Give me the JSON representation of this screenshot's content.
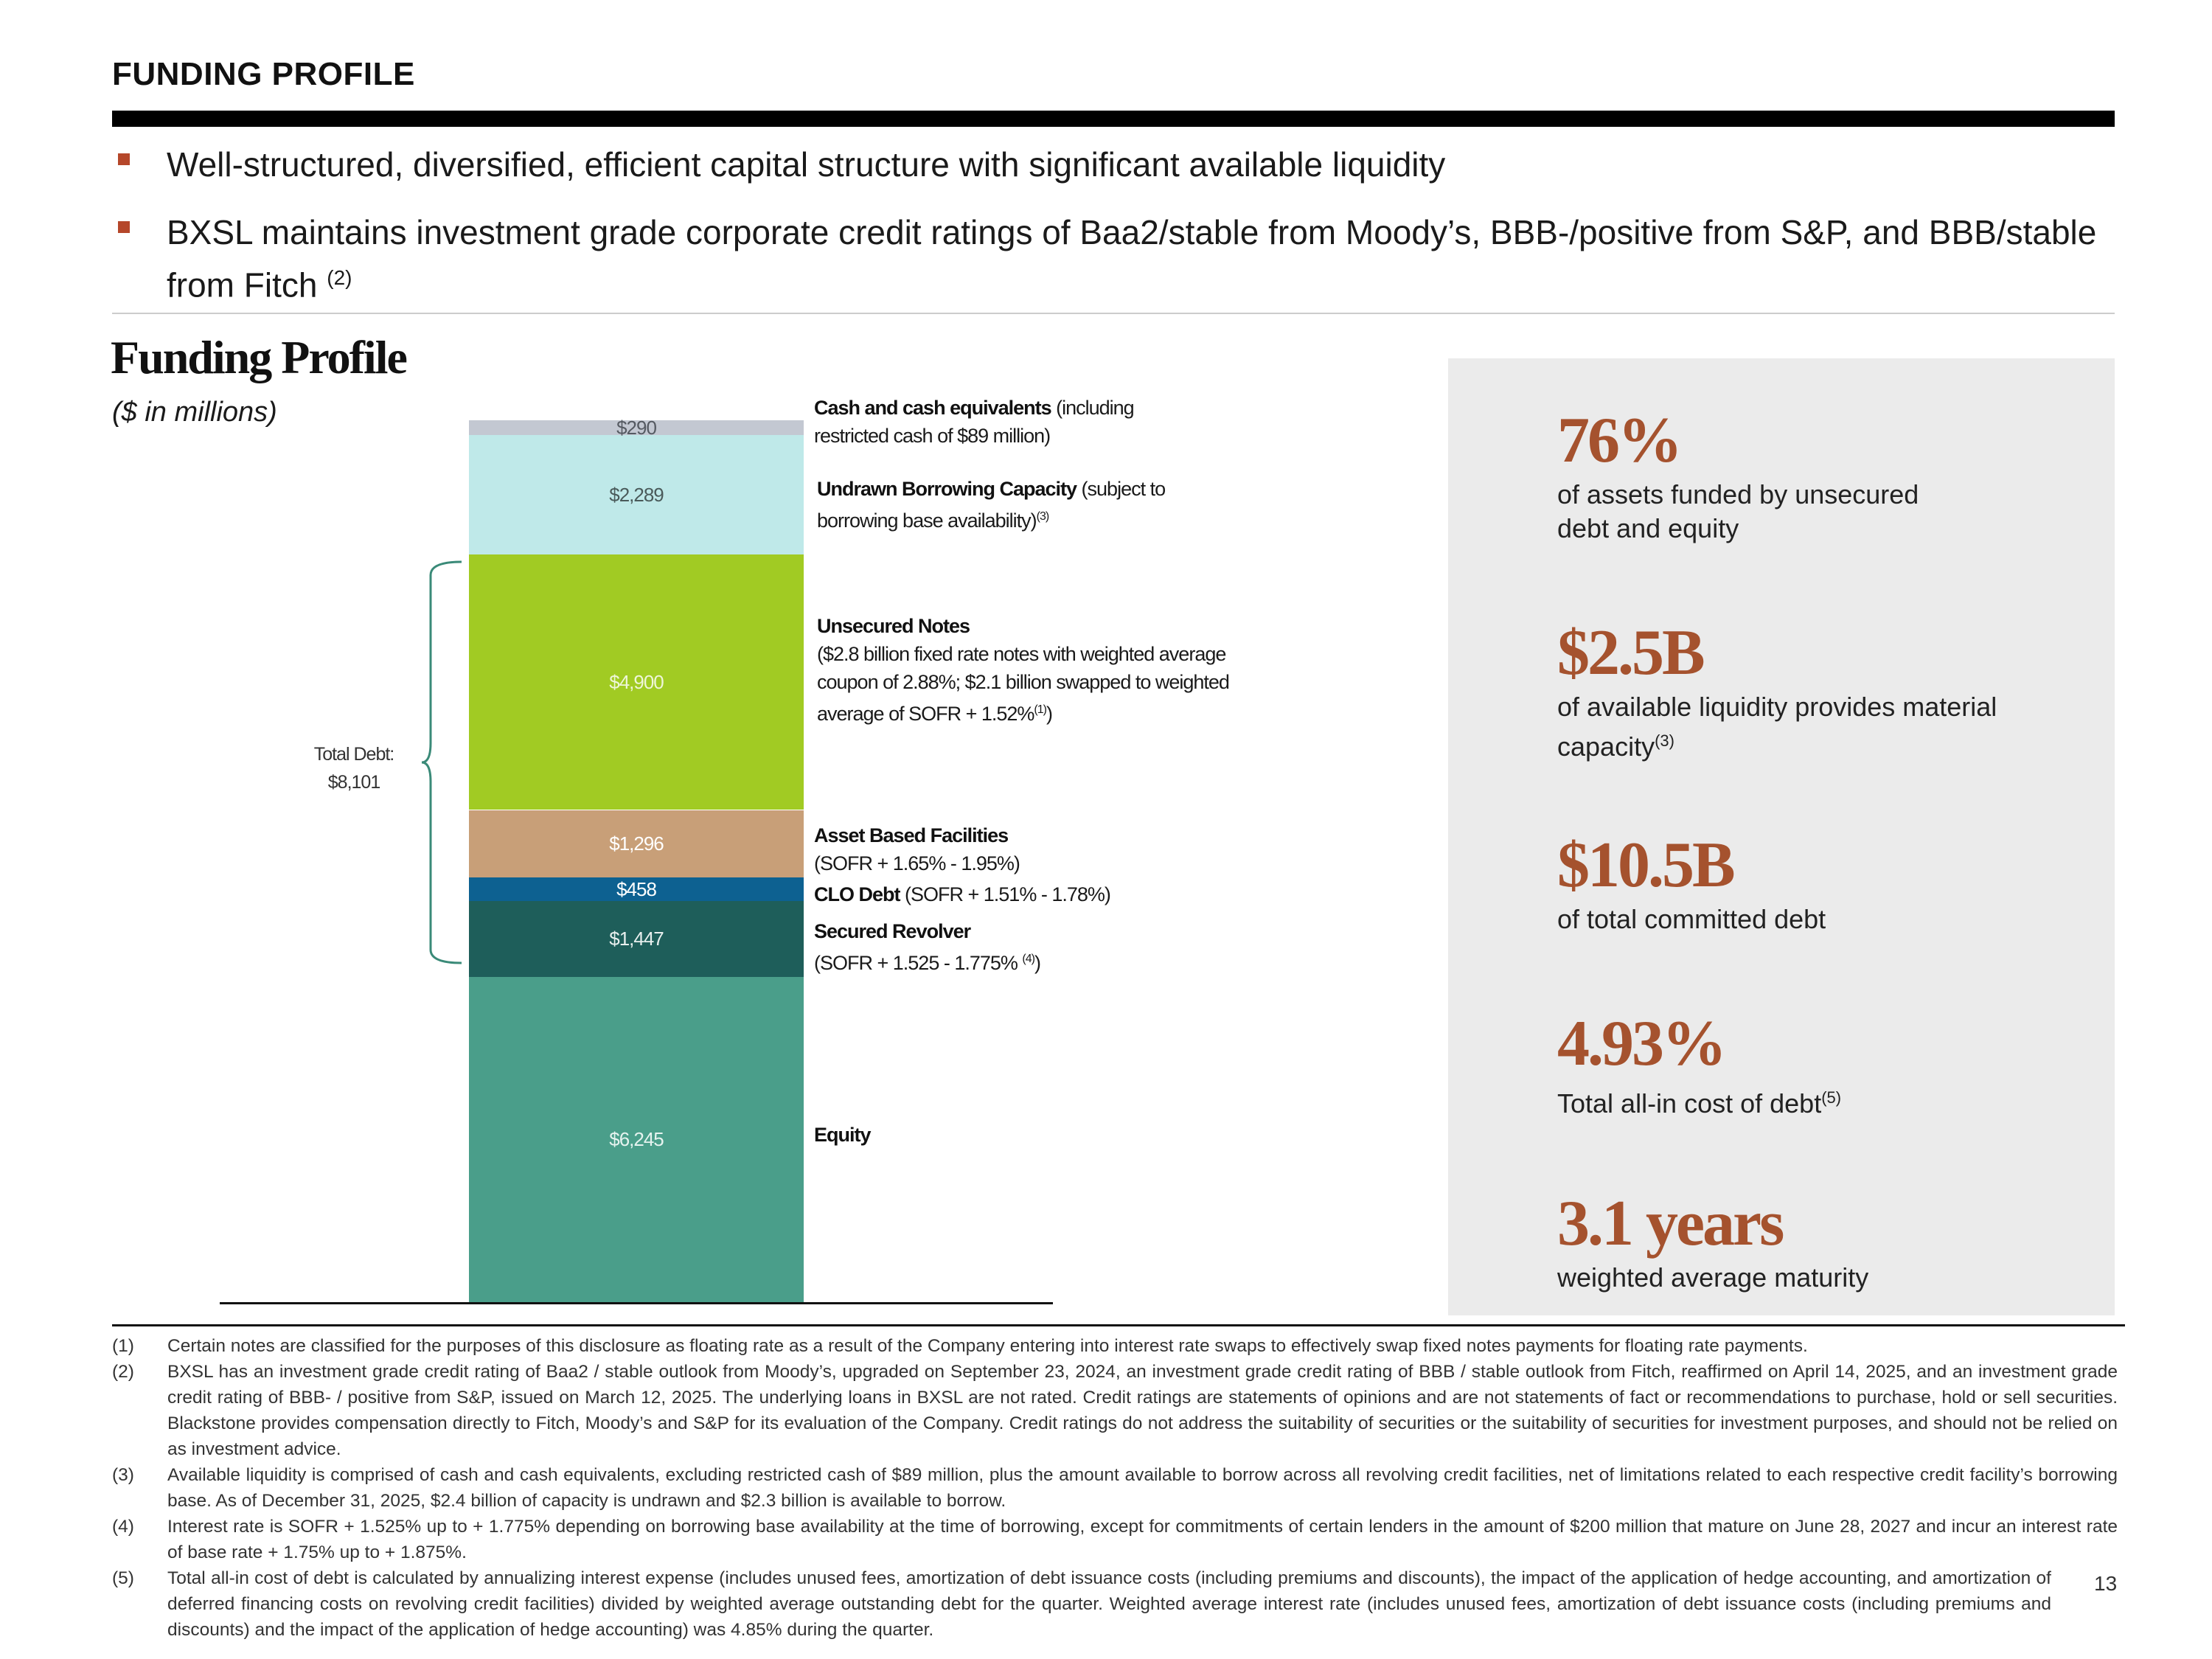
{
  "header": {
    "title": "FUNDING PROFILE",
    "bullets": [
      {
        "text": "Well-structured, diversified, efficient capital structure with significant available liquidity",
        "sup": ""
      },
      {
        "text": "BXSL maintains investment grade corporate credit ratings of Baa2/stable from Moody’s, BBB-/positive from S&P, and BBB/stable from Fitch",
        "sup": "(2)"
      }
    ]
  },
  "section": {
    "title": "Funding Profile",
    "units": "($ in millions)"
  },
  "chart_data": {
    "type": "bar",
    "stacked": true,
    "categories": [
      "Funding Profile"
    ],
    "series": [
      {
        "name": "Equity",
        "value": 6245,
        "label": "$6,245",
        "color": "#4a9e8a",
        "text_color": "#e6f3ef"
      },
      {
        "name": "Secured Revolver",
        "value": 1447,
        "label": "$1,447",
        "color": "#1e5e5a",
        "text_color": "#e8efee"
      },
      {
        "name": "CLO Debt",
        "value": 458,
        "label": "$458",
        "color": "#0d6191",
        "text_color": "#ffffff"
      },
      {
        "name": "Asset Based Facilities",
        "value": 1296,
        "label": "$1,296",
        "color": "#c89f78",
        "text_color": "#ffffff"
      },
      {
        "name": "Unsecured Notes",
        "value": 4900,
        "label": "$4,900",
        "color": "#a1cb23",
        "text_color": "#eef6d8"
      },
      {
        "name": "Undrawn Borrowing Capacity",
        "value": 2289,
        "label": "$2,289",
        "color": "#bfe9e9",
        "text_color": "#4a5a5a"
      },
      {
        "name": "Cash and cash equivalents",
        "value": 290,
        "label": "$290",
        "color": "#c3c8d2",
        "text_color": "#555a62"
      }
    ],
    "total_debt": {
      "label": "Total Debt:",
      "value": "$8,101"
    }
  },
  "segment_labels": {
    "cash": {
      "bold": "Cash and cash equivalents",
      "rest": " (including restricted cash of $89 million)"
    },
    "undrawn": {
      "bold": "Undrawn Borrowing Capacity",
      "rest": " (subject to borrowing base availability)",
      "sup": "(3)"
    },
    "unsecured": {
      "bold": "Unsecured Notes",
      "rest": "($2.8 billion fixed rate notes with weighted average coupon of 2.88%; $2.1 billion swapped to weighted average of SOFR + 1.52%",
      "sup": "(1)",
      "tail": ")"
    },
    "abf": {
      "bold": "Asset Based Facilities",
      "rest": "(SOFR + 1.65% - 1.95%)"
    },
    "clo": {
      "bold": "CLO Debt",
      "rest": " (SOFR + 1.51% - 1.78%)"
    },
    "revolver": {
      "bold": "Secured Revolver",
      "rest": "(SOFR + 1.525 - 1.775% ",
      "sup": "(4)",
      "tail": ")"
    },
    "equity": {
      "bold": "Equity"
    }
  },
  "stats": [
    {
      "big": "76%",
      "small": "of assets funded by unsecured debt and equity",
      "sup": ""
    },
    {
      "big": "$2.5B",
      "small": "of available liquidity provides material capacity",
      "sup": "(3)"
    },
    {
      "big": "$10.5B",
      "small": "of total committed debt",
      "sup": ""
    },
    {
      "big": "4.93%",
      "small": "Total all-in cost of debt",
      "sup": "(5)"
    },
    {
      "big": "3.1 years",
      "small": "weighted average maturity",
      "sup": ""
    }
  ],
  "footnotes": [
    {
      "num": "(1)",
      "text": "Certain notes are classified for the purposes of this disclosure as floating rate as a result of the Company entering into interest rate swaps to effectively swap fixed notes payments for floating rate payments."
    },
    {
      "num": "(2)",
      "text": "BXSL has an investment grade credit rating of Baa2 / stable outlook from Moody’s, upgraded on September 23, 2024, an investment grade credit rating of BBB / stable outlook from Fitch, reaffirmed on April 14, 2025, and an investment grade credit rating of BBB- / positive from S&P, issued on March 12, 2025. The underlying loans in BXSL are not rated. Credit ratings are statements of opinions and are not statements of fact or recommendations to purchase, hold or sell securities. Blackstone provides compensation directly to Fitch, Moody’s and S&P for its evaluation of the Company. Credit ratings do not address the suitability of securities or the suitability of securities for investment purposes, and should not be relied on as investment advice."
    },
    {
      "num": "(3)",
      "text": "Available liquidity is comprised of cash and cash equivalents, excluding restricted cash of $89 million, plus the amount available to borrow across all revolving credit facilities, net of limitations related to each respective credit facility’s borrowing base. As of December 31, 2025, $2.4 billion of capacity is undrawn and $2.3 billion is available to borrow."
    },
    {
      "num": "(4)",
      "text": "Interest rate is SOFR + 1.525% up to + 1.775% depending on borrowing base availability at the time of borrowing, except for commitments of certain lenders in the amount of $200 million that mature on June 28, 2027 and incur an interest rate of base rate + 1.75% up to + 1.875%."
    },
    {
      "num": "(5)",
      "text": "Total all-in cost of debt is calculated by annualizing interest expense (includes unused fees, amortization of debt issuance costs (including premiums and discounts), the impact of the application of hedge accounting, and amortization of deferred financing costs on revolving credit facilities) divided by weighted average outstanding debt for the quarter. Weighted average interest rate (includes unused fees, amortization of debt issuance costs (including premiums and discounts) and the impact of the application of hedge accounting) was 4.85% during the quarter."
    }
  ],
  "page_number": "13"
}
